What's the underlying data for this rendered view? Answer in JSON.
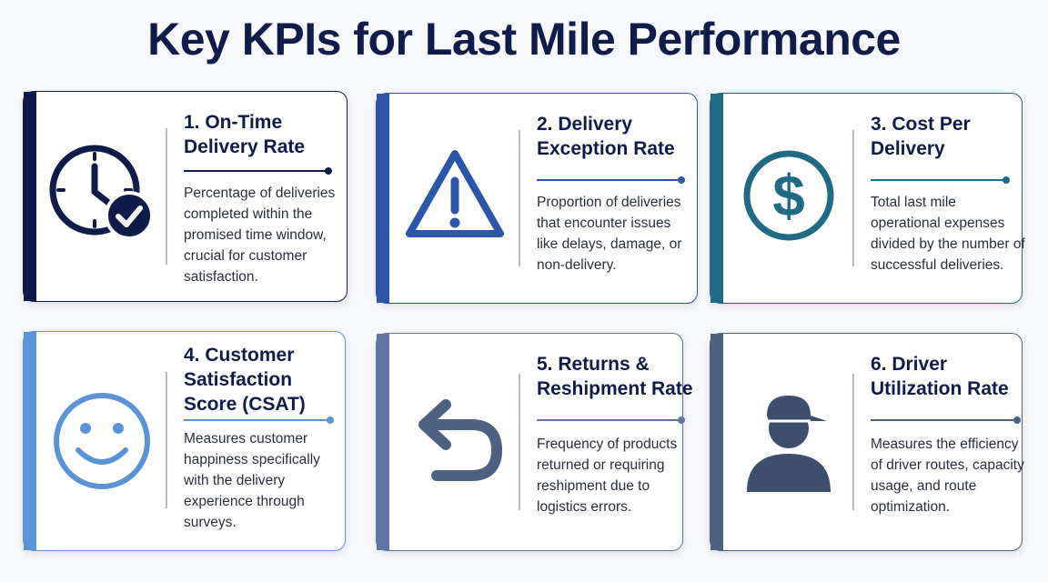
{
  "title": "Key KPIs for Last Mile Performance",
  "colors": {
    "card1": "#0f1c4a",
    "card2": "#2c56a8",
    "card3": "#1f6b86",
    "card4": "#5b93d9",
    "card5": "#5e76a3",
    "card6": "#4d6182"
  },
  "cards": [
    {
      "heading": "1. On-Time Delivery Rate",
      "description": "Percentage of deliveries completed within the promised time window, crucial for customer satisfaction.",
      "icon": "clock-check-icon"
    },
    {
      "heading": "2. Delivery Exception Rate",
      "description": "Proportion of deliveries that encounter issues like delays, damage, or non-delivery.",
      "icon": "warning-triangle-icon"
    },
    {
      "heading": "3. Cost Per Delivery",
      "description": "Total last mile operational expenses divided by the number of successful deliveries.",
      "icon": "dollar-circle-icon"
    },
    {
      "heading": "4. Customer Satisfaction Score (CSAT)",
      "description": "Measures customer happiness specifically with the delivery experience through surveys.",
      "icon": "smiley-face-icon"
    },
    {
      "heading": "5. Returns & Reshipment Rate",
      "description": "Frequency of products returned or requiring reshipment due to logistics errors.",
      "icon": "return-arrow-icon"
    },
    {
      "heading": "6. Driver Utilization Rate",
      "description": "Measures the efficiency of driver routes, capacity usage, and route optimization.",
      "icon": "driver-person-icon"
    }
  ]
}
